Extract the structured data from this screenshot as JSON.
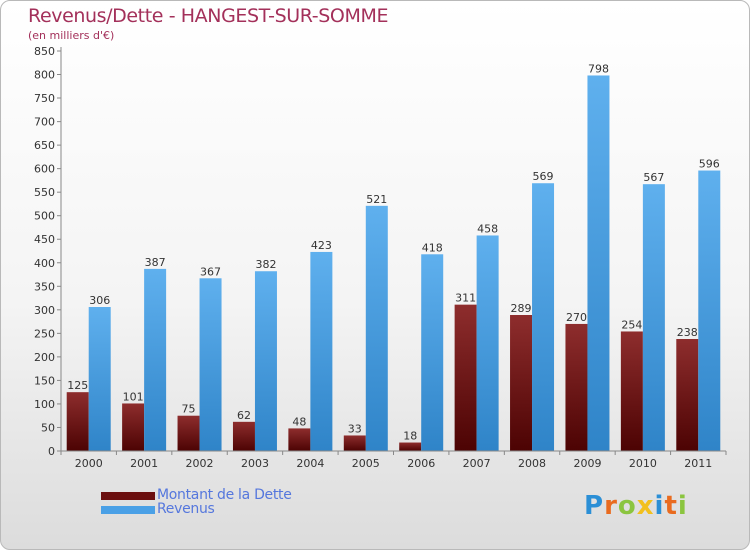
{
  "title": "Revenus/Dette - HANGEST-SUR-SOMME",
  "subtitle": "(en milliers d'€)",
  "brand": {
    "letters": [
      "P",
      "r",
      "o",
      "x",
      "i",
      "t",
      "i"
    ],
    "colors": [
      "#2b8fd6",
      "#e96b1f",
      "#8bc53f",
      "#f2c01d",
      "#2b8fd6",
      "#e96b1f",
      "#8bc53f"
    ]
  },
  "legend": {
    "items": [
      {
        "label": "Montant de la Dette",
        "color": "#6b0f0f"
      },
      {
        "label": "Revenus",
        "color": "#4aa0e6"
      }
    ]
  },
  "chart_data": {
    "type": "bar",
    "title": "Revenus/Dette - HANGEST-SUR-SOMME",
    "ylabel": "(en milliers d'€)",
    "xlabel": "",
    "categories": [
      "2000",
      "2001",
      "2002",
      "2003",
      "2004",
      "2005",
      "2006",
      "2007",
      "2008",
      "2009",
      "2010",
      "2011"
    ],
    "series": [
      {
        "name": "Montant de la Dette",
        "color": "#6b0f0f",
        "values": [
          125,
          101,
          75,
          62,
          48,
          33,
          18,
          311,
          289,
          270,
          254,
          238
        ]
      },
      {
        "name": "Revenus",
        "color": "#4aa0e6",
        "values": [
          306,
          387,
          367,
          382,
          423,
          521,
          418,
          458,
          569,
          798,
          567,
          596
        ]
      }
    ],
    "ylim": [
      0,
      850
    ],
    "yticks": [
      0,
      50,
      100,
      150,
      200,
      250,
      300,
      350,
      400,
      450,
      500,
      550,
      600,
      650,
      700,
      750,
      800,
      850
    ],
    "grid": false,
    "legend_position": "bottom-left"
  }
}
